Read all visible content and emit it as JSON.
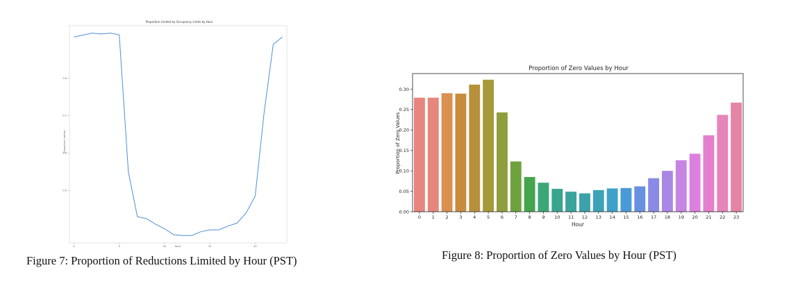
{
  "figure7": {
    "caption": "Figure 7: Proportion of Reductions Limited by Hour (PST)",
    "chart_data": {
      "type": "line",
      "title": "Proportion Limited by Occupancy Limits by Hour",
      "xlabel": "Hour",
      "ylabel": "Proportion Limited",
      "x": [
        0,
        1,
        2,
        3,
        4,
        5,
        6,
        7,
        8,
        9,
        10,
        11,
        12,
        13,
        14,
        15,
        16,
        17,
        18,
        19,
        20,
        21,
        22,
        23
      ],
      "values": [
        0.91,
        0.915,
        0.92,
        0.918,
        0.92,
        0.916,
        0.55,
        0.43,
        0.425,
        0.41,
        0.398,
        0.382,
        0.38,
        0.38,
        0.39,
        0.395,
        0.395,
        0.405,
        0.413,
        0.44,
        0.485,
        0.71,
        0.89,
        0.91
      ],
      "xticks": [
        0,
        5,
        10,
        15,
        20
      ],
      "yticks": [
        0.5,
        0.6,
        0.7,
        0.8
      ],
      "xlim": [
        -0.5,
        23.5
      ],
      "ylim": [
        0.36,
        0.94
      ],
      "color": "#4c8fd6"
    }
  },
  "figure8": {
    "caption": "Figure 8: Proportion of Zero Values by Hour (PST)",
    "chart_data": {
      "type": "bar",
      "title": "Proportion of Zero Values by Hour",
      "xlabel": "Hour",
      "ylabel": "Proportion of Zero Values",
      "categories": [
        "0",
        "1",
        "2",
        "3",
        "4",
        "5",
        "6",
        "7",
        "8",
        "9",
        "10",
        "11",
        "12",
        "13",
        "14",
        "15",
        "16",
        "17",
        "18",
        "19",
        "20",
        "21",
        "22",
        "23"
      ],
      "values": [
        0.279,
        0.279,
        0.29,
        0.289,
        0.311,
        0.323,
        0.243,
        0.123,
        0.085,
        0.071,
        0.056,
        0.049,
        0.045,
        0.053,
        0.057,
        0.058,
        0.062,
        0.082,
        0.1,
        0.126,
        0.142,
        0.187,
        0.237,
        0.267
      ],
      "colors": [
        "#e8857f",
        "#e6867c",
        "#d99050",
        "#c98b3e",
        "#b7913a",
        "#a5993a",
        "#8f9e3d",
        "#6ea23d",
        "#45a44d",
        "#3ba676",
        "#3aa58f",
        "#3aa39c",
        "#3ba2a9",
        "#3da2b6",
        "#3fa0c8",
        "#4a9ad8",
        "#6890e1",
        "#8a8be6",
        "#a987e5",
        "#c884e3",
        "#dc80df",
        "#e47fcd",
        "#e785bb",
        "#e584a6"
      ],
      "yticks": [
        0.0,
        0.05,
        0.1,
        0.15,
        0.2,
        0.25,
        0.3
      ],
      "ylim": [
        0,
        0.338
      ]
    }
  }
}
